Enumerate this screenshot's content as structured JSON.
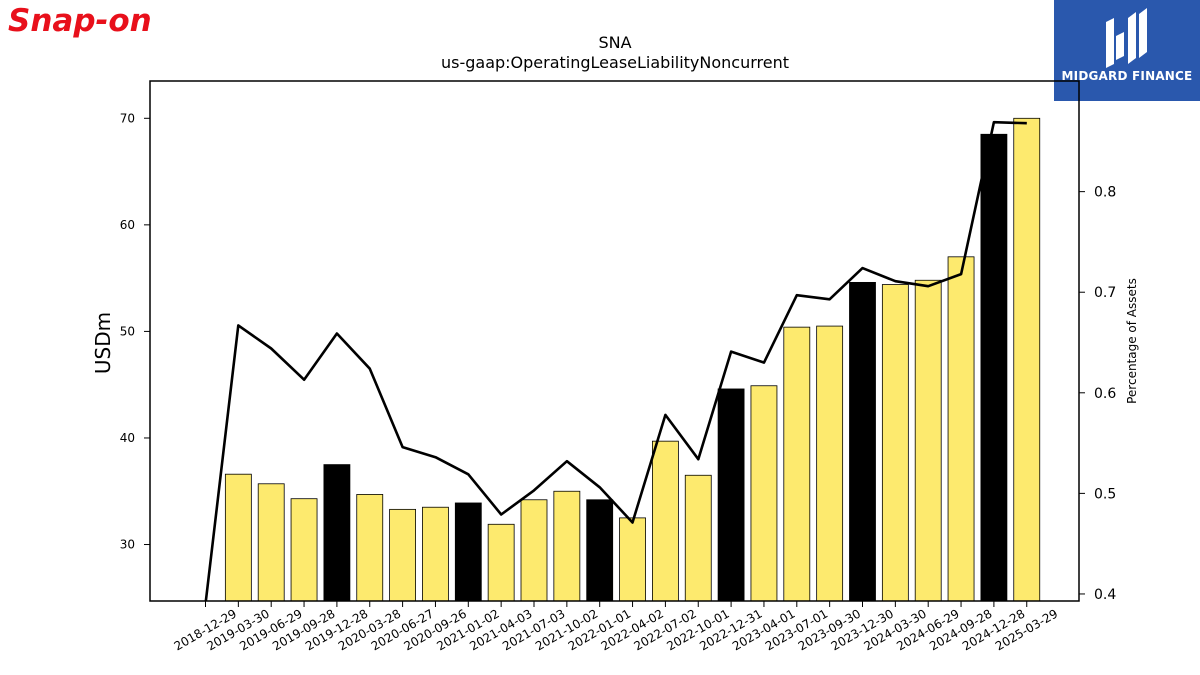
{
  "brand": {
    "left_logo": "Snap-on",
    "right_logo": "MIDGARD FINANCE",
    "left_color": "#e8101b",
    "right_bg": "#2a58ad"
  },
  "chart_data": {
    "type": "bar",
    "title": "SNA",
    "subtitle": "us-gaap:OperatingLeaseLiabilityNoncurrent",
    "ylabel": "USDm",
    "y2label": "Percentage of Assets",
    "ylim": [
      24.7,
      73.5
    ],
    "y2lim": [
      0.393,
      0.91
    ],
    "yticks": [
      30,
      40,
      50,
      60,
      70
    ],
    "y2ticks": [
      0.4,
      0.5,
      0.6,
      0.7,
      0.8
    ],
    "categories": [
      "2018-12-29",
      "2019-03-30",
      "2019-06-29",
      "2019-09-28",
      "2019-12-28",
      "2020-03-28",
      "2020-06-27",
      "2020-09-26",
      "2021-01-02",
      "2021-04-03",
      "2021-07-03",
      "2021-10-02",
      "2022-01-01",
      "2022-04-02",
      "2022-07-02",
      "2022-10-01",
      "2022-12-31",
      "2023-04-01",
      "2023-07-01",
      "2023-09-30",
      "2023-12-30",
      "2024-03-30",
      "2024-06-29",
      "2024-09-28",
      "2024-12-28",
      "2025-03-29"
    ],
    "series": [
      {
        "values": [
          null,
          36.6,
          35.7,
          34.3,
          37.5,
          34.7,
          33.3,
          33.5,
          33.9,
          31.9,
          34.2,
          35.0,
          34.2,
          32.5,
          39.7,
          36.5,
          44.6,
          44.9,
          50.4,
          50.5,
          54.6,
          54.4,
          54.8,
          57.0,
          68.5,
          70.0
        ]
      },
      {
        "values": [
          0.39,
          0.667,
          0.644,
          0.613,
          0.659,
          0.624,
          0.546,
          0.536,
          0.519,
          0.479,
          0.503,
          0.532,
          0.506,
          0.471,
          0.578,
          0.534,
          0.641,
          0.63,
          0.697,
          0.693,
          0.724,
          0.711,
          0.706,
          0.718,
          0.869,
          0.868
        ]
      }
    ],
    "year_end": [
      false,
      false,
      false,
      false,
      true,
      false,
      false,
      false,
      true,
      false,
      false,
      false,
      true,
      false,
      false,
      false,
      true,
      false,
      false,
      false,
      true,
      false,
      false,
      false,
      true,
      false
    ],
    "colors": {
      "bar": "#fdea6e",
      "bar_year_end": "#000000",
      "line": "#000000"
    }
  }
}
